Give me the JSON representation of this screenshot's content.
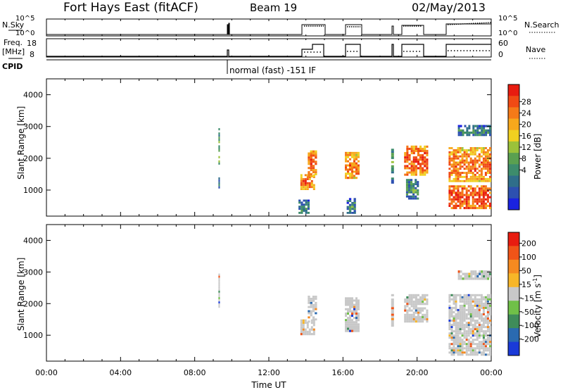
{
  "header": {
    "title": "Fort Hays East (fitACF)",
    "beam": "Beam 19",
    "date": "02/May/2013"
  },
  "strips": {
    "nsky_label": "N.Sky",
    "nsky_ticks": [
      "10^5",
      "10^0"
    ],
    "nsearch_label": "N.Search",
    "nsearch_ticks": [
      "10^5",
      "10^0"
    ],
    "freq_label": "Freq.",
    "freq_unit": "[MHz]",
    "freq_ticks": [
      "18",
      "8"
    ],
    "nave_label": "Nave",
    "nave_ticks": [
      "60",
      "0"
    ],
    "cpid_label": "CPID",
    "cpid_text": "normal (fast) -151 IF"
  },
  "colorbars": {
    "power": {
      "label": "Power [dB]",
      "ticks": [
        "28",
        "24",
        "20",
        "16",
        "12",
        "8",
        "4"
      ],
      "colors": [
        "#1a22e0",
        "#2d50b0",
        "#2f6e8a",
        "#3d8c6c",
        "#5aa050",
        "#9bc23a",
        "#f0d020",
        "#f7a81c",
        "#f57a18",
        "#f04a14",
        "#e81c10"
      ]
    },
    "velocity": {
      "label": "Velocity [m s",
      "label_sup": "-1",
      "label_end": "]",
      "ticks": [
        "200",
        "100",
        "50",
        "15",
        "-15",
        "-50",
        "-100",
        "-200"
      ],
      "colors": [
        "#1a3ad8",
        "#2a6ab0",
        "#3f8c5a",
        "#70c048",
        "#c8c8c8",
        "#f7b628",
        "#f58a20",
        "#f05418",
        "#e81c10"
      ]
    }
  },
  "chart_data": [
    {
      "type": "heatmap",
      "panel": "power",
      "ylabel": "Slant Range [km]",
      "xlabel": "",
      "yticks": [
        1000,
        2000,
        3000,
        4000
      ],
      "ylim": [
        180,
        4500
      ],
      "xlim": [
        0,
        24
      ],
      "xticks": [
        "00:00",
        "04:00",
        "08:00",
        "12:00",
        "16:00",
        "20:00",
        "00:00"
      ],
      "blocks": [
        {
          "t0": 9.28,
          "t1": 9.36,
          "r0": 1800,
          "r1": 2950,
          "level": 0.45
        },
        {
          "t0": 9.28,
          "t1": 9.36,
          "r0": 1050,
          "r1": 1400,
          "level": 0.3
        },
        {
          "t0": 13.7,
          "t1": 14.5,
          "r0": 1000,
          "r1": 1500,
          "level": 0.85
        },
        {
          "t0": 14.1,
          "t1": 14.6,
          "r0": 1400,
          "r1": 2250,
          "level": 0.9
        },
        {
          "t0": 13.6,
          "t1": 14.2,
          "r0": 250,
          "r1": 700,
          "level": 0.3
        },
        {
          "t0": 16.1,
          "t1": 16.9,
          "r0": 1350,
          "r1": 2200,
          "level": 0.85
        },
        {
          "t0": 16.2,
          "t1": 16.7,
          "r0": 250,
          "r1": 750,
          "level": 0.3
        },
        {
          "t0": 18.6,
          "t1": 18.75,
          "r0": 1200,
          "r1": 2300,
          "level": 0.4
        },
        {
          "t0": 19.3,
          "t1": 20.6,
          "r0": 1450,
          "r1": 2400,
          "level": 0.9
        },
        {
          "t0": 19.4,
          "t1": 20.1,
          "r0": 700,
          "r1": 1350,
          "level": 0.35
        },
        {
          "t0": 21.7,
          "t1": 24.0,
          "r0": 1250,
          "r1": 2350,
          "level": 0.85
        },
        {
          "t0": 21.7,
          "t1": 24.0,
          "r0": 400,
          "r1": 1150,
          "level": 0.95
        },
        {
          "t0": 22.2,
          "t1": 24.0,
          "r0": 2700,
          "r1": 3050,
          "level": 0.3
        }
      ]
    },
    {
      "type": "heatmap",
      "panel": "velocity",
      "ylabel": "Slant Range [km]",
      "xlabel": "Time UT",
      "yticks": [
        1000,
        2000,
        3000,
        4000
      ],
      "ylim": [
        180,
        4500
      ],
      "xlim": [
        0,
        24
      ],
      "xticks": [
        "00:00",
        "04:00",
        "08:00",
        "12:00",
        "16:00",
        "20:00",
        "00:00"
      ],
      "blocks": [
        {
          "t0": 9.28,
          "t1": 9.36,
          "r0": 1800,
          "r1": 2950,
          "level": 0.5
        },
        {
          "t0": 13.7,
          "t1": 14.5,
          "r0": 1000,
          "r1": 1500,
          "level": 0.5
        },
        {
          "t0": 14.1,
          "t1": 14.6,
          "r0": 1400,
          "r1": 2250,
          "level": 0.5
        },
        {
          "t0": 16.1,
          "t1": 16.9,
          "r0": 1100,
          "r1": 2200,
          "level": 0.5
        },
        {
          "t0": 18.6,
          "t1": 18.75,
          "r0": 1200,
          "r1": 2300,
          "level": 0.55
        },
        {
          "t0": 19.3,
          "t1": 20.6,
          "r0": 1400,
          "r1": 2300,
          "level": 0.5
        },
        {
          "t0": 21.7,
          "t1": 24.0,
          "r0": 350,
          "r1": 2300,
          "level": 0.5
        },
        {
          "t0": 22.2,
          "t1": 24.0,
          "r0": 2750,
          "r1": 3050,
          "level": 0.6
        }
      ]
    }
  ]
}
